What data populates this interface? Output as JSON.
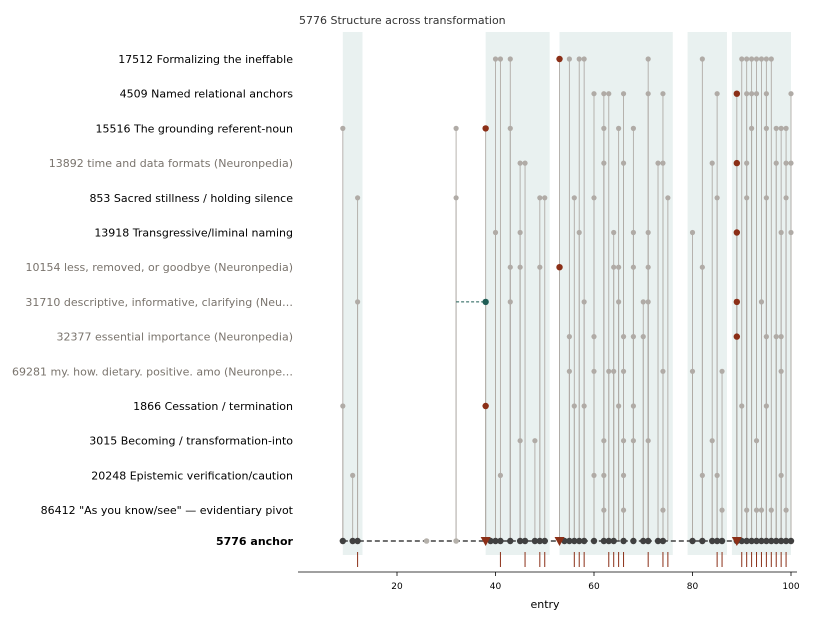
{
  "chart_data": {
    "type": "scatter",
    "title": "5776  Structure across transformation",
    "xlabel": "entry",
    "xlim": [
      7,
      100
    ],
    "xticks": [
      20,
      40,
      60,
      80,
      100
    ],
    "grid": false,
    "colors": {
      "band": "#e9f1f0",
      "point": "#b0aba6",
      "stem": "#b0aba6",
      "highlight": "#8b2f17",
      "special": "#1f5d55",
      "anchor": "#404040",
      "anchor_gap": "#b5b1ab",
      "rug": "#8b2f17",
      "label_dark": "#000000",
      "label_muted": "#7a746d"
    },
    "bands": [
      [
        9,
        13
      ],
      [
        38,
        51
      ],
      [
        53,
        76
      ],
      [
        79,
        87
      ],
      [
        88,
        100
      ]
    ],
    "rows": [
      {
        "label": "17512  Formalizing the ineffable",
        "muted": false,
        "points": [
          40,
          41,
          43,
          55,
          57,
          58,
          71,
          82,
          90,
          91,
          92,
          93,
          94,
          95,
          96
        ],
        "highlight": [
          53
        ]
      },
      {
        "label": "4509  Named relational anchors",
        "muted": false,
        "points": [
          60,
          62,
          63,
          66,
          71,
          74,
          85,
          91,
          92,
          93,
          95,
          100
        ],
        "highlight": [
          89
        ]
      },
      {
        "label": "15516  The grounding referent-noun",
        "muted": false,
        "points": [
          9,
          32,
          43,
          62,
          65,
          68,
          92,
          95,
          97,
          98,
          99
        ],
        "highlight": [
          38
        ]
      },
      {
        "label": "13892  time and data formats (Neuronpedia)",
        "muted": true,
        "points": [
          45,
          46,
          62,
          66,
          73,
          74,
          84,
          91,
          97,
          99,
          100
        ],
        "highlight": [
          89
        ]
      },
      {
        "label": "853  Sacred stillness / holding silence",
        "muted": false,
        "points": [
          12,
          32,
          49,
          50,
          56,
          60,
          75,
          85,
          91,
          95,
          99
        ],
        "highlight": []
      },
      {
        "label": "13918  Transgressive/liminal naming",
        "muted": false,
        "points": [
          40,
          45,
          57,
          64,
          68,
          71,
          80,
          98,
          100
        ],
        "highlight": [
          89
        ]
      },
      {
        "label": "10154  less, removed, or goodbye (Neuronpedia)",
        "muted": true,
        "points": [
          43,
          45,
          49,
          64,
          65,
          68,
          71,
          82
        ],
        "highlight": [
          53
        ]
      },
      {
        "label": "31710  descriptive, informative, clarifying (Neu…",
        "muted": true,
        "points": [
          12,
          43,
          58,
          65,
          70,
          71,
          94
        ],
        "highlight": [
          89
        ],
        "special": [
          38
        ],
        "dashed_from": 32
      },
      {
        "label": "32377  essential importance (Neuronpedia)",
        "muted": true,
        "points": [
          55,
          60,
          66,
          68,
          70,
          95,
          97,
          98
        ],
        "highlight": [
          89
        ]
      },
      {
        "label": "69281  my. how. dietary. positive. amo (Neuronpe…",
        "muted": true,
        "points": [
          55,
          60,
          63,
          64,
          66,
          74,
          80,
          86,
          98
        ],
        "highlight": []
      },
      {
        "label": "1866  Cessation / termination",
        "muted": false,
        "points": [
          9,
          56,
          58,
          65,
          68,
          90,
          95
        ],
        "highlight": [
          38
        ]
      },
      {
        "label": "3015  Becoming / transformation-into",
        "muted": false,
        "points": [
          45,
          48,
          62,
          66,
          68,
          71,
          84,
          93
        ],
        "highlight": []
      },
      {
        "label": "20248  Epistemic verification/caution",
        "muted": false,
        "points": [
          11,
          41,
          60,
          62,
          66,
          82,
          85,
          98
        ],
        "highlight": []
      },
      {
        "label": "86412  \"As you know/see\" — evidentiary pivot",
        "muted": false,
        "points": [
          62,
          66,
          74,
          86,
          91,
          93,
          94,
          96,
          99
        ],
        "highlight": []
      }
    ],
    "anchor": {
      "label": "5776  anchor",
      "points": [
        9,
        11,
        12,
        39,
        40,
        41,
        43,
        45,
        46,
        48,
        49,
        50,
        54,
        55,
        56,
        57,
        58,
        60,
        62,
        63,
        64,
        66,
        68,
        70,
        71,
        73,
        74,
        80,
        82,
        84,
        85,
        86,
        89,
        90,
        91,
        92,
        93,
        94,
        95,
        96,
        97,
        98,
        99,
        100
      ],
      "gap_points": [
        26,
        32
      ],
      "triangles": [
        38,
        53,
        89
      ]
    },
    "rug": [
      12,
      41,
      46,
      49,
      50,
      56,
      57,
      58,
      63,
      64,
      65,
      66,
      71,
      74,
      75,
      85,
      86,
      90,
      91,
      92,
      93,
      94,
      95,
      96,
      97,
      98,
      99
    ]
  }
}
